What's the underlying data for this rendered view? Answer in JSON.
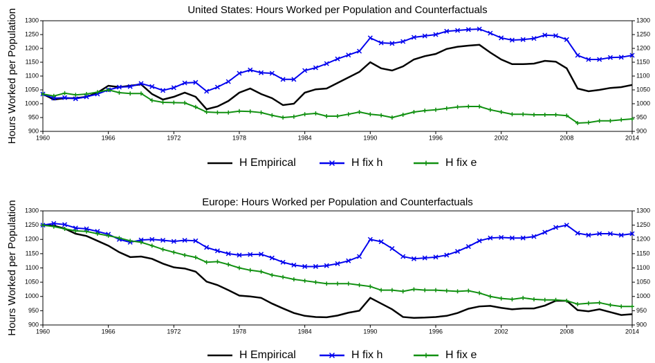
{
  "chart_data": [
    {
      "type": "line",
      "title": "United States: Hours Worked per Population and Counterfactuals",
      "y_label": "Hours Worked per Population",
      "x": [
        1960,
        1961,
        1962,
        1963,
        1964,
        1965,
        1966,
        1967,
        1968,
        1969,
        1970,
        1971,
        1972,
        1973,
        1974,
        1975,
        1976,
        1977,
        1978,
        1979,
        1980,
        1981,
        1982,
        1983,
        1984,
        1985,
        1986,
        1987,
        1988,
        1989,
        1990,
        1991,
        1992,
        1993,
        1994,
        1995,
        1996,
        1997,
        1998,
        1999,
        2000,
        2001,
        2002,
        2003,
        2004,
        2005,
        2006,
        2007,
        2008,
        2009,
        2010,
        2011,
        2012,
        2013,
        2014
      ],
      "xlim": [
        1960,
        2014
      ],
      "xticks": [
        1960,
        1966,
        1972,
        1978,
        1984,
        1990,
        1996,
        2002,
        2008,
        2014
      ],
      "ylim": [
        900,
        1300
      ],
      "yticks": [
        900,
        950,
        1000,
        1050,
        1100,
        1150,
        1200,
        1250,
        1300
      ],
      "series": [
        {
          "name": "H Empirical",
          "color": "#000000",
          "values": [
            1035,
            1015,
            1020,
            1020,
            1025,
            1040,
            1065,
            1060,
            1065,
            1070,
            1035,
            1015,
            1025,
            1040,
            1025,
            980,
            990,
            1010,
            1040,
            1055,
            1035,
            1020,
            995,
            1000,
            1040,
            1052,
            1055,
            1075,
            1095,
            1115,
            1150,
            1128,
            1120,
            1135,
            1160,
            1172,
            1180,
            1198,
            1206,
            1210,
            1213,
            1185,
            1160,
            1143,
            1143,
            1145,
            1155,
            1152,
            1128,
            1055,
            1045,
            1050,
            1057,
            1060,
            1068
          ]
        },
        {
          "name": "H fix h",
          "color": "#0000ee",
          "marker": "x",
          "values": [
            1035,
            1020,
            1022,
            1018,
            1025,
            1035,
            1050,
            1060,
            1062,
            1073,
            1062,
            1048,
            1058,
            1075,
            1077,
            1045,
            1060,
            1080,
            1110,
            1122,
            1112,
            1110,
            1088,
            1088,
            1120,
            1130,
            1145,
            1162,
            1176,
            1190,
            1238,
            1220,
            1218,
            1225,
            1240,
            1245,
            1250,
            1262,
            1265,
            1268,
            1270,
            1255,
            1238,
            1230,
            1232,
            1236,
            1248,
            1246,
            1232,
            1175,
            1160,
            1160,
            1167,
            1168,
            1175
          ]
        },
        {
          "name": "H fix e",
          "color": "#109010",
          "marker": "+",
          "values": [
            1035,
            1028,
            1038,
            1032,
            1035,
            1042,
            1050,
            1040,
            1037,
            1037,
            1012,
            1005,
            1004,
            1003,
            988,
            970,
            968,
            968,
            973,
            972,
            968,
            958,
            950,
            953,
            962,
            965,
            955,
            955,
            962,
            970,
            962,
            958,
            950,
            960,
            970,
            975,
            978,
            983,
            988,
            990,
            990,
            978,
            970,
            962,
            962,
            960,
            960,
            960,
            957,
            930,
            932,
            938,
            938,
            942,
            945
          ]
        }
      ]
    },
    {
      "type": "line",
      "title": "Europe: Hours Worked per Population and Counterfactuals",
      "y_label": "Hours Worked per Population",
      "x": [
        1960,
        1961,
        1962,
        1963,
        1964,
        1965,
        1966,
        1967,
        1968,
        1969,
        1970,
        1971,
        1972,
        1973,
        1974,
        1975,
        1976,
        1977,
        1978,
        1979,
        1980,
        1981,
        1982,
        1983,
        1984,
        1985,
        1986,
        1987,
        1988,
        1989,
        1990,
        1991,
        1992,
        1993,
        1994,
        1995,
        1996,
        1997,
        1998,
        1999,
        2000,
        2001,
        2002,
        2003,
        2004,
        2005,
        2006,
        2007,
        2008,
        2009,
        2010,
        2011,
        2012,
        2013,
        2014
      ],
      "xlim": [
        1960,
        2014
      ],
      "xticks": [
        1960,
        1966,
        1972,
        1978,
        1984,
        1990,
        1996,
        2002,
        2008,
        2014
      ],
      "ylim": [
        900,
        1300
      ],
      "yticks": [
        900,
        950,
        1000,
        1050,
        1100,
        1150,
        1200,
        1250,
        1300
      ],
      "series": [
        {
          "name": "H Empirical",
          "color": "#000000",
          "values": [
            1250,
            1248,
            1238,
            1220,
            1212,
            1195,
            1178,
            1155,
            1138,
            1140,
            1132,
            1115,
            1102,
            1098,
            1087,
            1052,
            1040,
            1022,
            1003,
            1000,
            995,
            975,
            958,
            942,
            932,
            928,
            927,
            933,
            943,
            950,
            995,
            975,
            955,
            928,
            925,
            926,
            928,
            932,
            942,
            957,
            965,
            967,
            960,
            955,
            958,
            958,
            968,
            985,
            985,
            952,
            948,
            955,
            945,
            935,
            938
          ]
        },
        {
          "name": "H fix h",
          "color": "#0000ee",
          "marker": "x",
          "values": [
            1250,
            1256,
            1252,
            1240,
            1237,
            1228,
            1218,
            1200,
            1190,
            1198,
            1200,
            1197,
            1193,
            1197,
            1195,
            1172,
            1160,
            1150,
            1145,
            1147,
            1148,
            1135,
            1120,
            1110,
            1105,
            1105,
            1108,
            1115,
            1125,
            1140,
            1200,
            1192,
            1168,
            1140,
            1132,
            1135,
            1138,
            1145,
            1158,
            1175,
            1195,
            1205,
            1207,
            1205,
            1205,
            1210,
            1225,
            1242,
            1250,
            1222,
            1215,
            1220,
            1220,
            1215,
            1220
          ]
        },
        {
          "name": "H fix e",
          "color": "#109010",
          "marker": "+",
          "values": [
            1250,
            1245,
            1237,
            1230,
            1228,
            1220,
            1213,
            1205,
            1195,
            1190,
            1178,
            1165,
            1155,
            1145,
            1137,
            1120,
            1122,
            1112,
            1100,
            1092,
            1087,
            1075,
            1068,
            1060,
            1055,
            1050,
            1045,
            1045,
            1045,
            1040,
            1035,
            1022,
            1022,
            1018,
            1025,
            1022,
            1022,
            1020,
            1018,
            1020,
            1012,
            1000,
            993,
            990,
            995,
            990,
            988,
            988,
            985,
            973,
            976,
            978,
            970,
            965,
            965
          ]
        }
      ]
    }
  ]
}
